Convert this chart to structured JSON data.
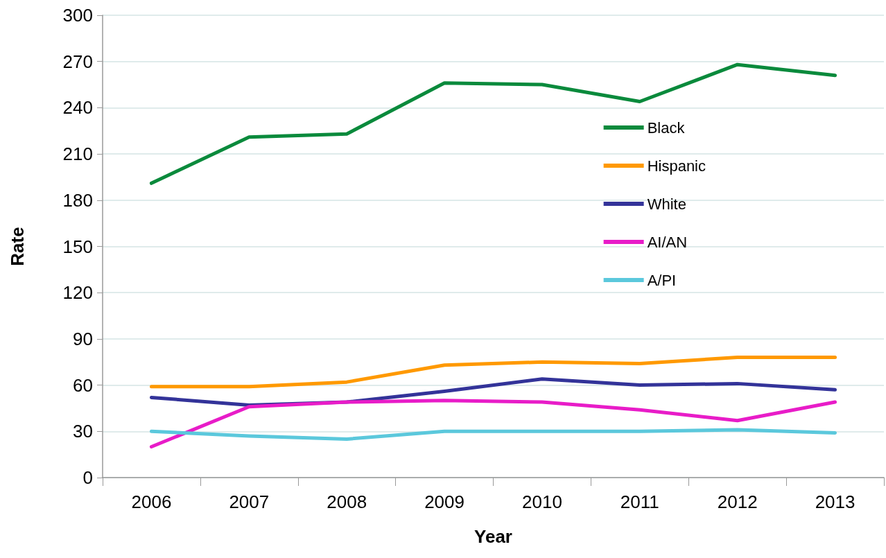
{
  "chart_data": {
    "type": "line",
    "xlabel": "Year",
    "ylabel": "Rate",
    "categories": [
      "2006",
      "2007",
      "2008",
      "2009",
      "2010",
      "2011",
      "2012",
      "2013"
    ],
    "series": [
      {
        "name": "Black",
        "color": "#0a8a3c",
        "values": [
          191,
          221,
          223,
          256,
          255,
          244,
          268,
          261
        ]
      },
      {
        "name": "Hispanic",
        "color": "#ff9900",
        "values": [
          59,
          59,
          62,
          73,
          75,
          74,
          78,
          78
        ]
      },
      {
        "name": "White",
        "color": "#333399",
        "values": [
          52,
          47,
          49,
          56,
          64,
          60,
          61,
          57
        ]
      },
      {
        "name": "AI/AN",
        "color": "#e81cc8",
        "values": [
          20,
          46,
          49,
          50,
          49,
          44,
          37,
          49
        ]
      },
      {
        "name": "A/PI",
        "color": "#5bc8dc",
        "values": [
          30,
          27,
          25,
          30,
          30,
          30,
          31,
          29
        ]
      }
    ],
    "ylim": [
      0,
      300
    ],
    "yticks": [
      0,
      30,
      60,
      90,
      120,
      150,
      180,
      210,
      240,
      270,
      300
    ],
    "grid": "y",
    "legend": "top right",
    "marker": "none",
    "line_style": "solid"
  }
}
